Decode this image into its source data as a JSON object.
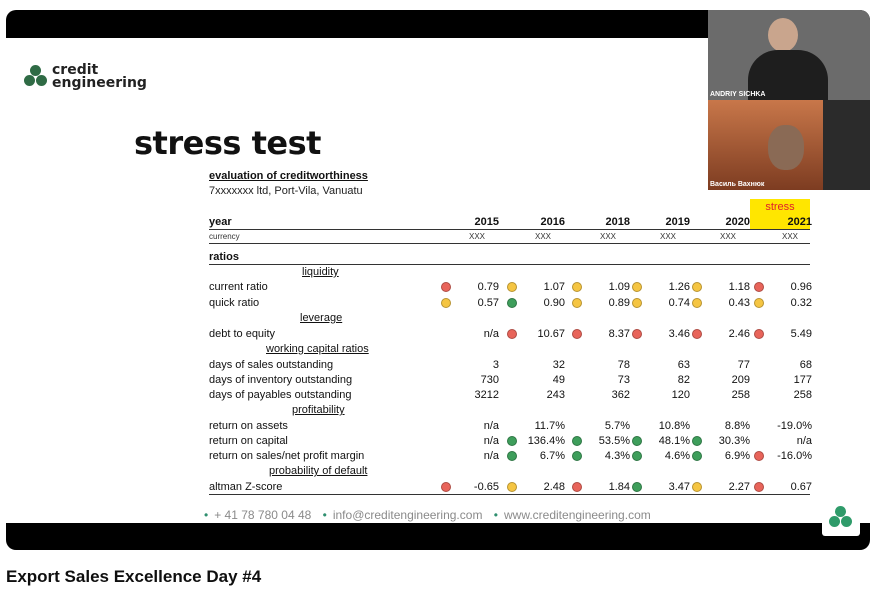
{
  "video": {
    "title": "Export Sales Excellence Day #4"
  },
  "slide": {
    "logo_line1": "credit",
    "logo_line2": "engineering",
    "title": "stress test",
    "subtitle": "evaluation of creditworthiness",
    "company": "7xxxxxxx ltd, Port-Vila, Vanuatu",
    "stress_label": "stress",
    "year_label": "year",
    "currency_label": "currency",
    "years": [
      "2015",
      "2016",
      "2018",
      "2019",
      "2020",
      "2021"
    ],
    "currencies": [
      "XXX",
      "XXX",
      "XXX",
      "XXX",
      "XXX",
      "XXX"
    ],
    "ratios_label": "ratios",
    "sections": {
      "liquidity": "liquidity",
      "leverage": "leverage",
      "working_capital": "working capital ratios",
      "profitability": "profitability",
      "probability": "probability of default"
    },
    "rows": [
      {
        "label": "current ratio",
        "values": [
          "0.79",
          "1.07",
          "1.09",
          "1.26",
          "1.18",
          "0.96"
        ],
        "dots": [
          "red",
          "yellow",
          "yellow",
          "yellow",
          "yellow",
          "red"
        ]
      },
      {
        "label": "quick ratio",
        "values": [
          "0.57",
          "0.90",
          "0.89",
          "0.74",
          "0.43",
          "0.32"
        ],
        "dots": [
          "yellow",
          "green",
          "yellow",
          "yellow",
          "yellow",
          "yellow"
        ]
      },
      {
        "label": "debt to equity",
        "values": [
          "n/a",
          "10.67",
          "8.37",
          "3.46",
          "2.46",
          "5.49"
        ],
        "dots": [
          "",
          "red",
          "red",
          "red",
          "red",
          "red"
        ]
      },
      {
        "label": "days of sales outstanding",
        "values": [
          "3",
          "32",
          "78",
          "63",
          "77",
          "68"
        ],
        "dots": []
      },
      {
        "label": "days of inventory outstanding",
        "values": [
          "730",
          "49",
          "73",
          "82",
          "209",
          "177"
        ],
        "dots": []
      },
      {
        "label": "days of payables outstanding",
        "values": [
          "3212",
          "243",
          "362",
          "120",
          "258",
          "258"
        ],
        "dots": []
      },
      {
        "label": "return on assets",
        "values": [
          "n/a",
          "11.7%",
          "5.7%",
          "10.8%",
          "8.8%",
          "-19.0%"
        ],
        "dots": []
      },
      {
        "label": "return on capital",
        "values": [
          "n/a",
          "136.4%",
          "53.5%",
          "48.1%",
          "30.3%",
          "n/a"
        ],
        "dots": [
          "",
          "green",
          "green",
          "green",
          "green",
          ""
        ]
      },
      {
        "label": "return on sales/net profit margin",
        "values": [
          "n/a",
          "6.7%",
          "4.3%",
          "4.6%",
          "6.9%",
          "-16.0%"
        ],
        "dots": [
          "",
          "green",
          "green",
          "green",
          "green",
          "red"
        ]
      },
      {
        "label": "altman Z-score",
        "values": [
          "-0.65",
          "2.48",
          "1.84",
          "3.47",
          "2.27",
          "0.67"
        ],
        "dots": [
          "red",
          "yellow",
          "red",
          "green",
          "yellow",
          "red"
        ]
      }
    ],
    "footer": {
      "phone": "+ 41 78 780 04 48",
      "email": "info@creditengineering.com",
      "web": "www.creditengineering.com"
    }
  },
  "participants": [
    {
      "name": "ANDRIY SICHKA"
    },
    {
      "name": "Василь Вахнюк"
    }
  ],
  "colors": {
    "red": "#e8645a",
    "yellow": "#f5c542",
    "green": "#3e9e5b",
    "stress_bg": "#ffe600",
    "stress_text": "#e0202a"
  }
}
